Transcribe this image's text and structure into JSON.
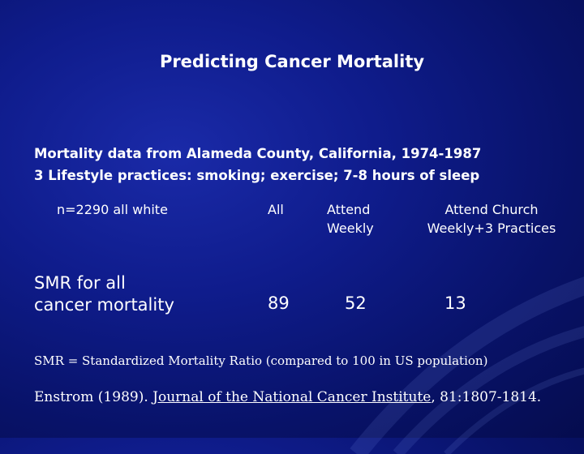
{
  "title": "Predicting Cancer Mortality",
  "intro": {
    "line1": "Mortality data from Alameda County, California, 1974-1987",
    "line2": "3 Lifestyle practices: smoking; exercise; 7-8 hours of sleep"
  },
  "table": {
    "header": {
      "sample": "n=2290 all white",
      "col_all": "All",
      "col_attend_l1": "Attend",
      "col_attend_l2": "Weekly",
      "col_church_l1": "Attend Church",
      "col_church_l2": "Weekly+3 Practices"
    },
    "row": {
      "label_l1": "SMR for all",
      "label_l2": "cancer mortality",
      "all": "89",
      "attend": "52",
      "church": "13"
    }
  },
  "note": "SMR = Standardized Mortality Ratio (compared to 100 in US population)",
  "citation": {
    "prefix": "Enstrom (1989). ",
    "journal": "Journal of the National Cancer Institute",
    "suffix": ", 81:1807-1814."
  }
}
